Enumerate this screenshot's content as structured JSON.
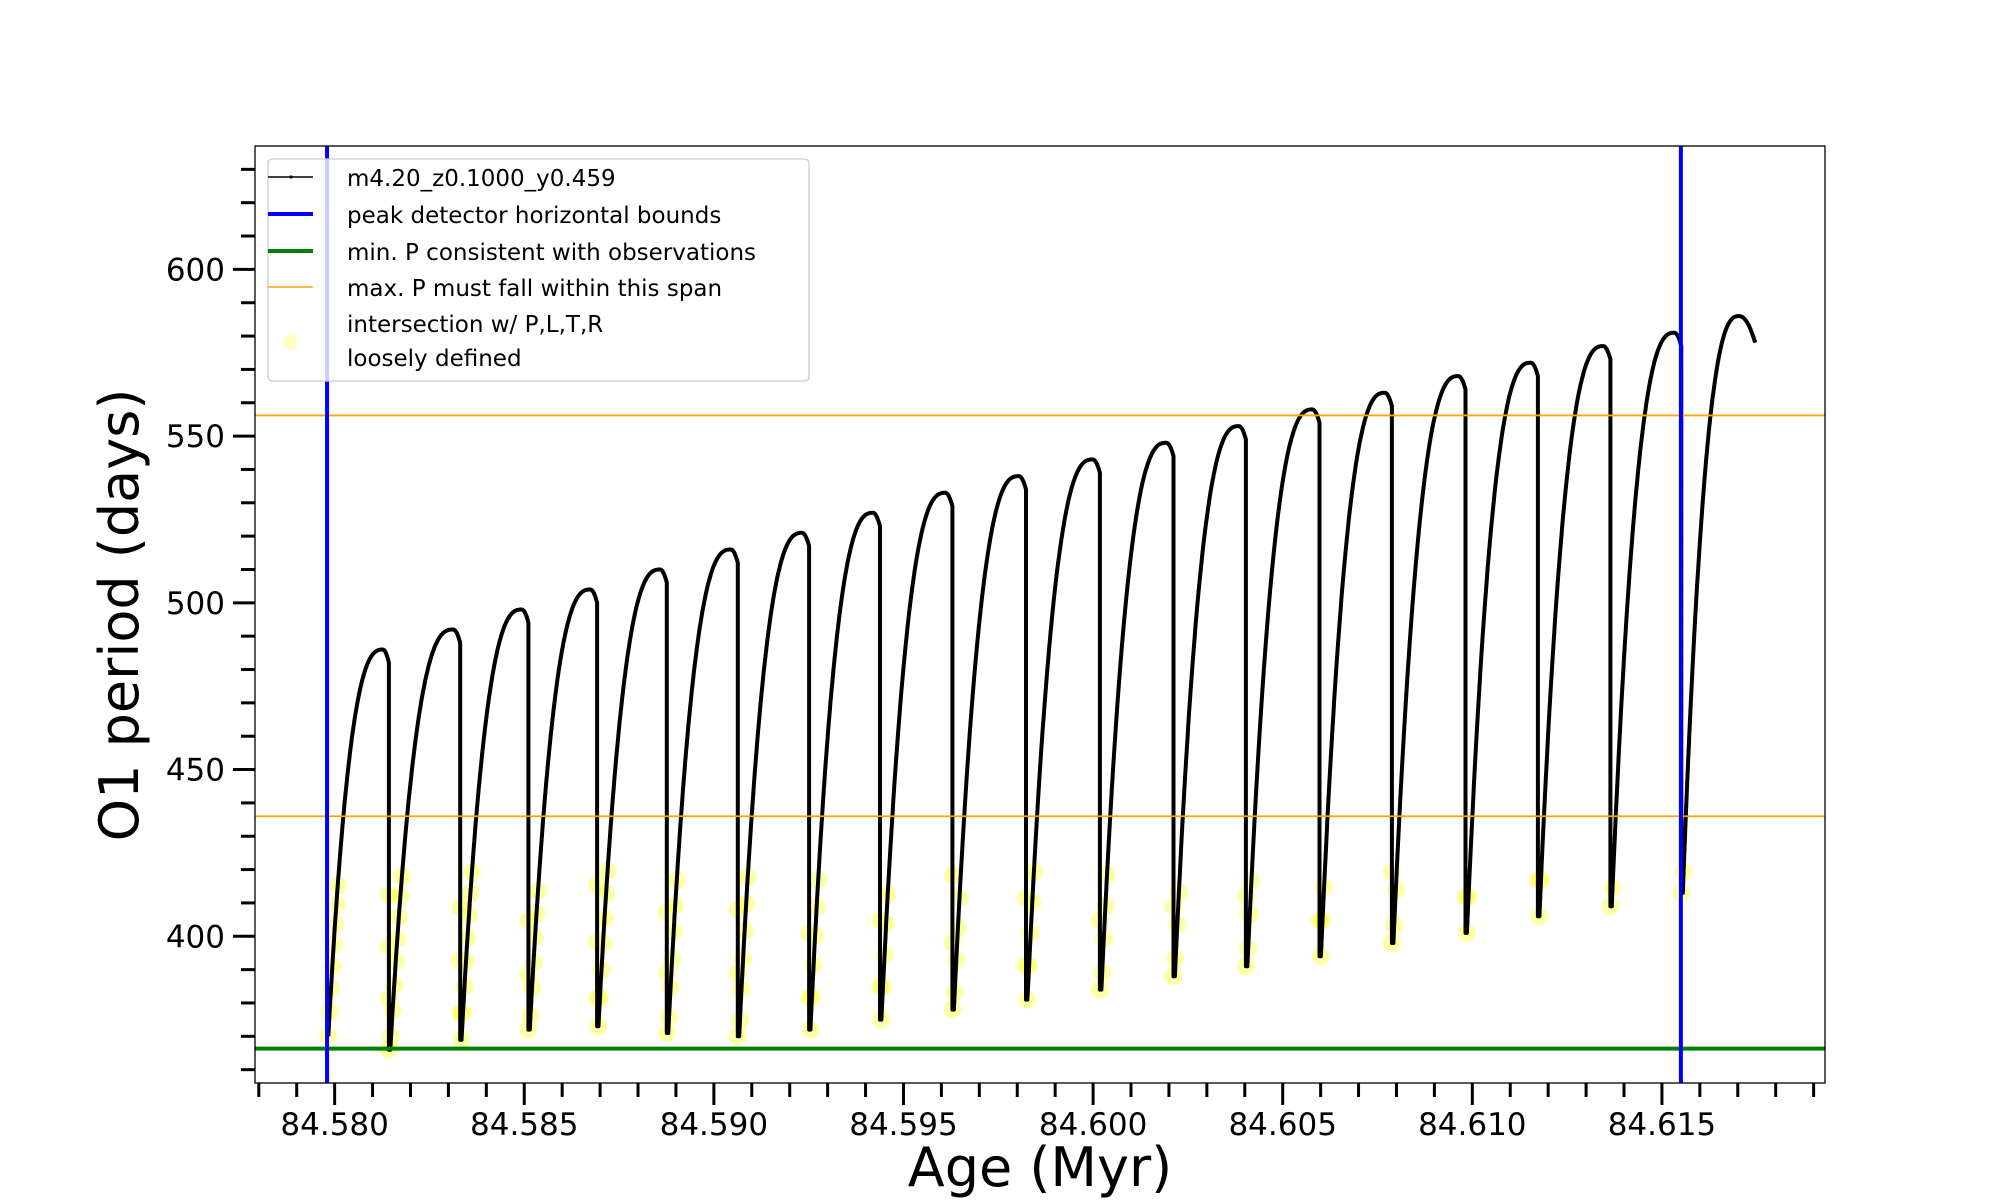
{
  "chart_data": {
    "type": "line",
    "xlabel": "Age (Myr)",
    "ylabel": "O1 period (days)",
    "xlim": [
      84.5779,
      84.6193
    ],
    "ylim": [
      356,
      637
    ],
    "xticks": [
      84.58,
      84.585,
      84.59,
      84.595,
      84.6,
      84.605,
      84.61,
      84.615
    ],
    "xtick_labels": [
      "84.580",
      "84.585",
      "84.590",
      "84.595",
      "84.600",
      "84.605",
      "84.610",
      "84.615"
    ],
    "yticks": [
      400,
      450,
      500,
      550,
      600
    ],
    "ytick_labels": [
      "400",
      "450",
      "500",
      "550",
      "600"
    ],
    "legend_position": "top-left",
    "legend": [
      {
        "label": "m4.20_z0.1000_y0.459",
        "color": "#000000",
        "kind": "line-marker"
      },
      {
        "label": "peak detector horizontal bounds",
        "color": "#0000ff",
        "kind": "thick-line"
      },
      {
        "label": "min. P consistent with observations",
        "color": "#008000",
        "kind": "thick-line"
      },
      {
        "label": "max. P must fall within this span",
        "color": "#ffa500",
        "kind": "thin-line"
      },
      {
        "label": "intersection w/ P,L,T,R",
        "label2": "loosely defined",
        "color": "#ffff00",
        "kind": "dot"
      }
    ],
    "vlines": [
      84.5798,
      84.6155
    ],
    "hline_min": 366.3,
    "hlines_span": [
      436.0,
      556.2
    ],
    "intersection_threshold": 420,
    "series": {
      "name": "m4.20_z0.1000_y0.459",
      "cycles": [
        {
          "x_start": 84.5798,
          "p_min": 370,
          "p_peak": 486
        },
        {
          "x_start": 84.58143,
          "p_min": 366,
          "p_peak": 492
        },
        {
          "x_start": 84.58331,
          "p_min": 369,
          "p_peak": 498
        },
        {
          "x_start": 84.58511,
          "p_min": 372,
          "p_peak": 504
        },
        {
          "x_start": 84.58692,
          "p_min": 373,
          "p_peak": 510
        },
        {
          "x_start": 84.58876,
          "p_min": 371,
          "p_peak": 516
        },
        {
          "x_start": 84.59063,
          "p_min": 370,
          "p_peak": 521
        },
        {
          "x_start": 84.59251,
          "p_min": 372,
          "p_peak": 527
        },
        {
          "x_start": 84.59438,
          "p_min": 375,
          "p_peak": 533
        },
        {
          "x_start": 84.59629,
          "p_min": 378,
          "p_peak": 538
        },
        {
          "x_start": 84.59823,
          "p_min": 381,
          "p_peak": 543
        },
        {
          "x_start": 84.60018,
          "p_min": 384,
          "p_peak": 548
        },
        {
          "x_start": 84.60212,
          "p_min": 388,
          "p_peak": 553
        },
        {
          "x_start": 84.60403,
          "p_min": 391,
          "p_peak": 558
        },
        {
          "x_start": 84.60597,
          "p_min": 394,
          "p_peak": 563
        },
        {
          "x_start": 84.60788,
          "p_min": 398,
          "p_peak": 568
        },
        {
          "x_start": 84.60982,
          "p_min": 401,
          "p_peak": 572
        },
        {
          "x_start": 84.61173,
          "p_min": 406,
          "p_peak": 577
        },
        {
          "x_start": 84.61364,
          "p_min": 409,
          "p_peak": 581
        },
        {
          "x_start": 84.61551,
          "p_min": 413,
          "p_peak": 586
        }
      ],
      "x_end": 84.61746,
      "p_end": 578
    }
  }
}
